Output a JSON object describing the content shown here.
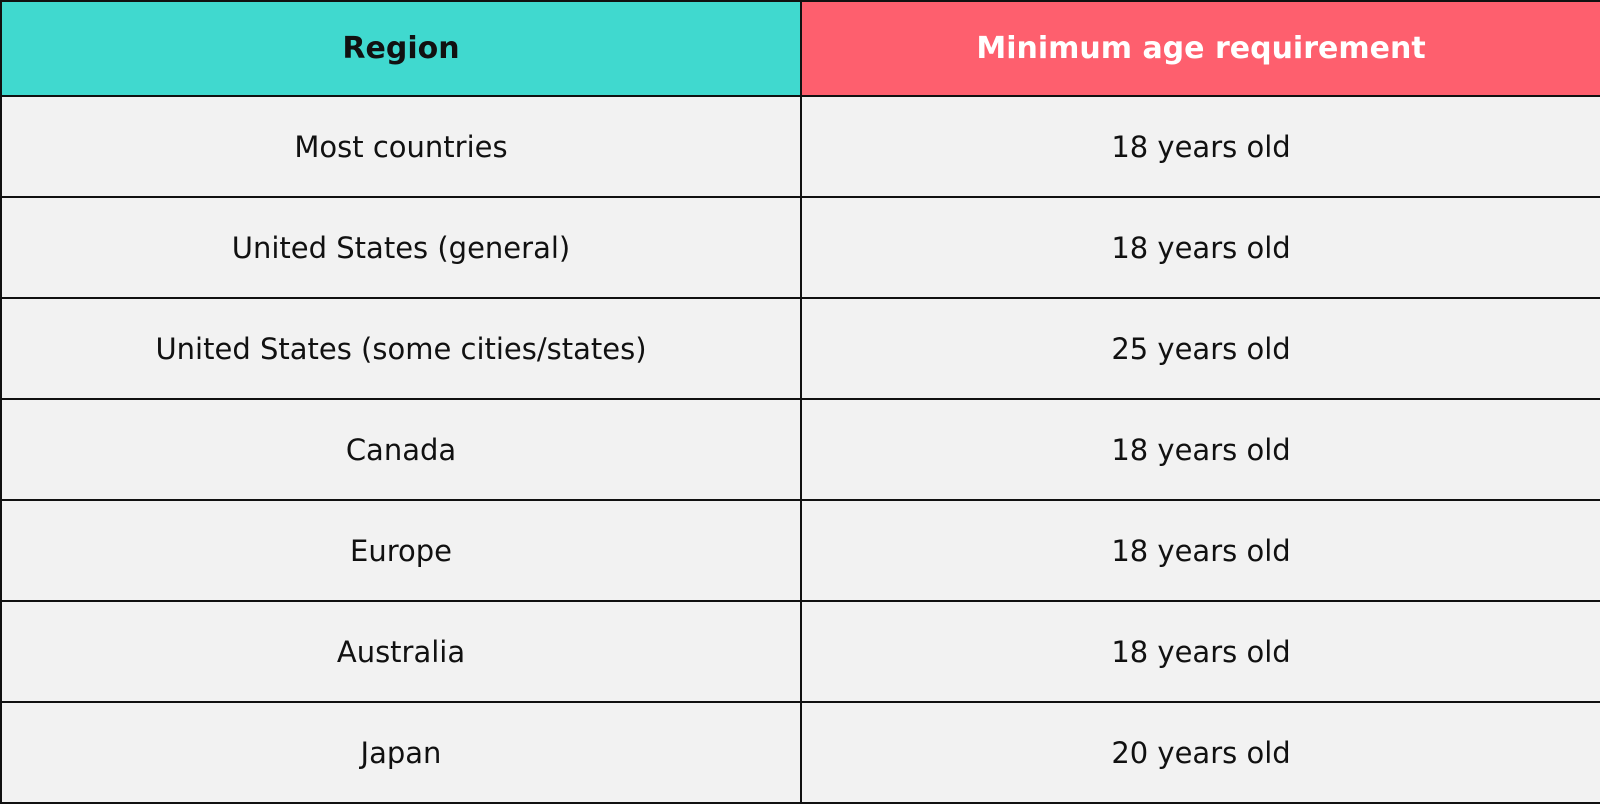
{
  "table": {
    "headers": [
      "Region",
      "Minimum age requirement"
    ],
    "header_colors": {
      "region": "#40d9cf",
      "age": "#fe5f6e"
    },
    "rows": [
      [
        "Most countries",
        "18 years old"
      ],
      [
        "United States (general)",
        "18 years old"
      ],
      [
        "United States (some cities/states)",
        "25 years old"
      ],
      [
        "Canada",
        "18 years old"
      ],
      [
        "Europe",
        "18 years old"
      ],
      [
        "Australia",
        "18 years old"
      ],
      [
        "Japan",
        "20 years old"
      ]
    ]
  }
}
